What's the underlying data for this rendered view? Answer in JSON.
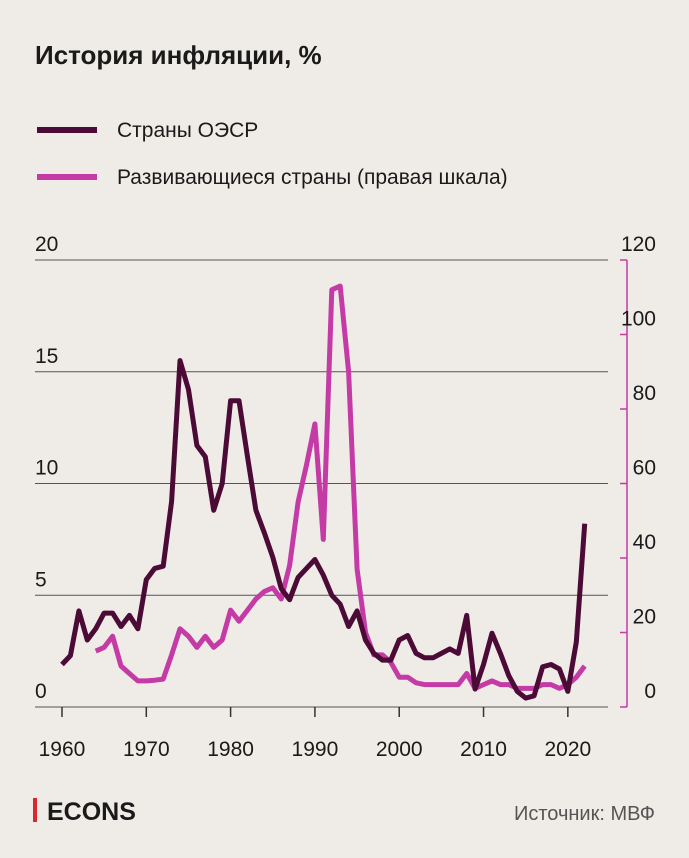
{
  "chart_data": {
    "type": "line",
    "title": "История инфляции, %",
    "x": [
      1960,
      1961,
      1962,
      1963,
      1964,
      1965,
      1966,
      1967,
      1968,
      1969,
      1970,
      1971,
      1972,
      1973,
      1974,
      1975,
      1976,
      1977,
      1978,
      1979,
      1980,
      1981,
      1982,
      1983,
      1984,
      1985,
      1986,
      1987,
      1988,
      1989,
      1990,
      1991,
      1992,
      1993,
      1994,
      1995,
      1996,
      1997,
      1998,
      1999,
      2000,
      2001,
      2002,
      2003,
      2004,
      2005,
      2006,
      2007,
      2008,
      2009,
      2010,
      2011,
      2012,
      2013,
      2014,
      2015,
      2016,
      2017,
      2018,
      2019,
      2020,
      2021,
      2022
    ],
    "series": [
      {
        "name": "Страны ОЭСР",
        "color": "#4b0b36",
        "values": [
          1.9,
          2.3,
          4.3,
          3.0,
          3.5,
          4.2,
          4.2,
          3.6,
          4.1,
          3.5,
          5.7,
          6.2,
          6.3,
          9.2,
          15.5,
          14.2,
          11.7,
          11.2,
          8.8,
          10.0,
          13.7,
          13.7,
          11.2,
          8.8,
          7.8,
          6.7,
          5.3,
          4.8,
          5.8,
          6.2,
          6.6,
          5.9,
          5.0,
          4.6,
          3.6,
          4.3,
          3.0,
          2.4,
          2.1,
          2.1,
          3.0,
          3.2,
          2.4,
          2.2,
          2.2,
          2.4,
          2.6,
          2.4,
          4.1,
          0.8,
          1.9,
          3.3,
          2.4,
          1.4,
          0.7,
          0.4,
          0.5,
          1.8,
          1.9,
          1.7,
          0.7,
          2.9,
          8.2
        ]
      },
      {
        "name": "Развивающиеся страны (правая шкала)",
        "color": "#c53ba5",
        "axis": "y2",
        "values": [
          null,
          null,
          null,
          null,
          15,
          16,
          19,
          11,
          9,
          7,
          7,
          7.2,
          7.5,
          14,
          21,
          19,
          16,
          19,
          16,
          18,
          26,
          23,
          26,
          29,
          31,
          32,
          29,
          38,
          55,
          65,
          76,
          45,
          112,
          113,
          90,
          37,
          20,
          14,
          14,
          12,
          8,
          8,
          6.5,
          6,
          6,
          6,
          6,
          6,
          9,
          5,
          6,
          7,
          6,
          6,
          5,
          5,
          5,
          6,
          6,
          5,
          6,
          8,
          11
        ]
      }
    ],
    "xlim": [
      1957,
      2025
    ],
    "xticks": [
      1960,
      1970,
      1980,
      1990,
      2000,
      2010,
      2020
    ],
    "ylim": [
      0,
      20
    ],
    "yticks": [
      0,
      5,
      10,
      15,
      20
    ],
    "y2lim": [
      0,
      120
    ],
    "y2ticks": [
      0,
      20,
      40,
      60,
      80,
      100,
      120
    ],
    "grid": true,
    "source": "Источник: МВФ",
    "brand": "ECONS"
  }
}
